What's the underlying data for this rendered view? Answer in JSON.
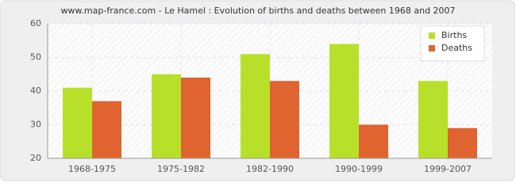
{
  "chart_data": {
    "type": "bar",
    "title": "www.map-france.com - Le Hamel : Evolution of births and deaths between 1968 and 2007",
    "categories": [
      "1968-1975",
      "1975-1982",
      "1982-1990",
      "1990-1999",
      "1999-2007"
    ],
    "series": [
      {
        "name": "Births",
        "color": "#b8e02a",
        "values": [
          41,
          45,
          51,
          54,
          43
        ]
      },
      {
        "name": "Deaths",
        "color": "#e06430",
        "values": [
          37,
          44,
          43,
          30,
          29
        ]
      }
    ],
    "ylim": [
      20,
      60
    ],
    "yticks": [
      20,
      30,
      40,
      50,
      60
    ],
    "grid": true,
    "legend": "top-right"
  }
}
